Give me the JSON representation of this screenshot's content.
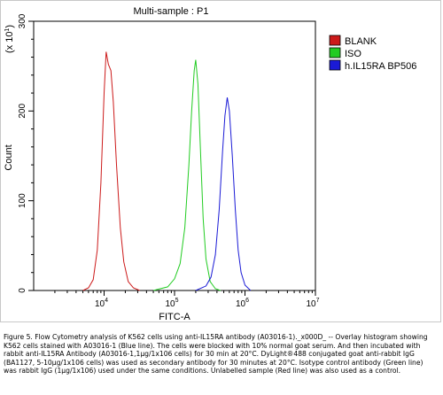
{
  "chart_data": {
    "type": "line",
    "title": "Multi-sample : P1",
    "xlabel": "FITC-A",
    "ylabel": "Count",
    "y_multiplier": "(x 10",
    "y_multiplier_exp": "1",
    "y_multiplier_close": ")",
    "x_scale": "log",
    "xlim": [
      1000,
      10000000
    ],
    "ylim": [
      0,
      30
    ],
    "x_ticks": [
      {
        "value": 10000,
        "base": "10",
        "exp": "4"
      },
      {
        "value": 100000,
        "base": "10",
        "exp": "5"
      },
      {
        "value": 1000000,
        "base": "10",
        "exp": "6"
      },
      {
        "value": 10000000,
        "base": "10",
        "exp": "7"
      }
    ],
    "y_ticks": [
      {
        "value": 0,
        "label": "0"
      },
      {
        "value": 10,
        "label": "100"
      },
      {
        "value": 20,
        "label": "200"
      },
      {
        "value": 30,
        "label": "300"
      }
    ],
    "legend_position": "top-right",
    "series": [
      {
        "name": "BLANK",
        "color": "#cc1a1a",
        "points": [
          [
            5000,
            0
          ],
          [
            6000,
            0.3
          ],
          [
            7000,
            1.2
          ],
          [
            8000,
            4.5
          ],
          [
            9000,
            12
          ],
          [
            10000,
            22
          ],
          [
            10700,
            26.6
          ],
          [
            11500,
            25.2
          ],
          [
            12500,
            24.5
          ],
          [
            13500,
            21
          ],
          [
            15000,
            14
          ],
          [
            17000,
            7
          ],
          [
            19000,
            3.2
          ],
          [
            22000,
            1
          ],
          [
            26000,
            0.3
          ],
          [
            32000,
            0
          ]
        ]
      },
      {
        "name": "ISO",
        "color": "#22cc22",
        "points": [
          [
            50000,
            0
          ],
          [
            80000,
            0.4
          ],
          [
            100000,
            1.3
          ],
          [
            120000,
            3
          ],
          [
            140000,
            7
          ],
          [
            160000,
            14
          ],
          [
            175000,
            20
          ],
          [
            190000,
            24.5
          ],
          [
            200000,
            25.7
          ],
          [
            215000,
            23
          ],
          [
            235000,
            15
          ],
          [
            255000,
            8
          ],
          [
            280000,
            3.5
          ],
          [
            320000,
            1
          ],
          [
            380000,
            0.2
          ],
          [
            450000,
            0
          ]
        ]
      },
      {
        "name": "h.IL15RA BP506",
        "color": "#1a1ad6",
        "points": [
          [
            200000,
            0
          ],
          [
            280000,
            0.5
          ],
          [
            330000,
            1.5
          ],
          [
            380000,
            4
          ],
          [
            430000,
            9
          ],
          [
            480000,
            15.5
          ],
          [
            520000,
            19.5
          ],
          [
            560000,
            21.5
          ],
          [
            600000,
            20
          ],
          [
            660000,
            15
          ],
          [
            730000,
            9
          ],
          [
            800000,
            4.5
          ],
          [
            880000,
            2
          ],
          [
            1000000,
            0.6
          ],
          [
            1200000,
            0
          ]
        ]
      }
    ]
  },
  "caption": "Figure 5. Flow Cytometry analysis of K562 cells using anti-IL15RA antibody (A03016-1)._x000D_ -- Overlay histogram showing K562 cells stained with A03016-1 (Blue line). The cells were blocked with 10% normal goat serum. And then incubated with rabbit anti-IL15RA Antibody (A03016-1,1μg/1x106 cells) for 30 min at 20°C. DyLight®488 conjugated goat anti-rabbit IgG (BA1127, 5-10μg/1x106 cells) was used as secondary antibody for 30 minutes at 20°C. Isotype control antibody (Green line) was rabbit IgG (1μg/1x106) used under the same conditions. Unlabelled sample (Red line) was also used as a control."
}
